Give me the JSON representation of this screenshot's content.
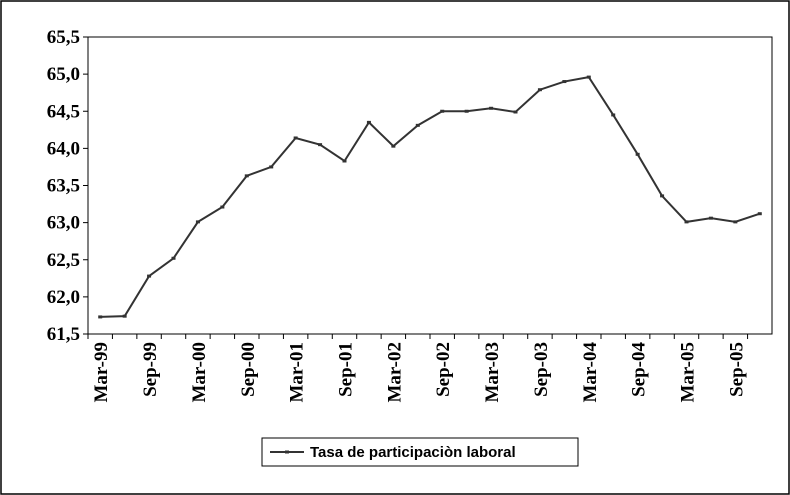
{
  "chart_data": {
    "type": "line",
    "categories": [
      "Mar-99",
      null,
      "Sep-99",
      null,
      "Mar-00",
      null,
      "Sep-00",
      null,
      "Mar-01",
      null,
      "Sep-01",
      null,
      "Mar-02",
      null,
      "Sep-02",
      null,
      "Mar-03",
      null,
      "Sep-03",
      null,
      "Mar-04",
      null,
      "Sep-04",
      null,
      "Mar-05",
      null,
      "Sep-05",
      null
    ],
    "series": [
      {
        "name": "Tasa de participaciòn laboral",
        "color": "#333333",
        "values": [
          61.73,
          61.74,
          62.28,
          62.52,
          63.01,
          63.21,
          63.63,
          63.75,
          64.14,
          64.05,
          63.83,
          64.35,
          64.03,
          64.31,
          64.5,
          64.5,
          64.54,
          64.49,
          64.79,
          64.9,
          64.96,
          64.45,
          63.92,
          63.36,
          63.01,
          63.06,
          63.01,
          63.12
        ]
      }
    ],
    "ylim": [
      61.5,
      65.5
    ],
    "yticks": [
      {
        "value": 61.5,
        "label": "61,5"
      },
      {
        "value": 62,
        "label": "62,0"
      },
      {
        "value": 62.5,
        "label": "62,5"
      },
      {
        "value": 63,
        "label": "63,0"
      },
      {
        "value": 63.5,
        "label": "63,5"
      },
      {
        "value": 64,
        "label": "64,0"
      },
      {
        "value": 64.5,
        "label": "64,5"
      },
      {
        "value": 65,
        "label": "65,0"
      },
      {
        "value": 65.5,
        "label": "65,5"
      }
    ],
    "legend": "bottom"
  }
}
